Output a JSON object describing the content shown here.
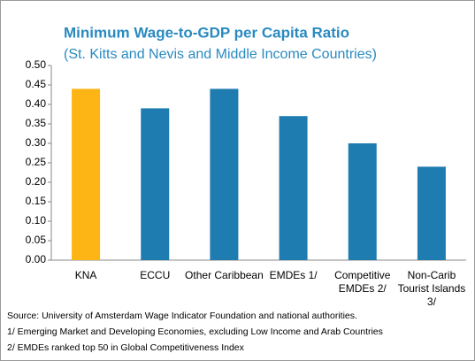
{
  "chart_data": {
    "type": "bar",
    "title": "Minimum Wage-to-GDP per Capita Ratio",
    "subtitle": "(St. Kitts and Nevis and Middle Income Countries)",
    "categories": [
      "KNA",
      "ECCU",
      "Other Caribbean",
      "EMDEs 1/",
      "Competitive EMDEs 2/",
      "Non-Carib Tourist Islands 3/"
    ],
    "values": [
      0.44,
      0.39,
      0.44,
      0.37,
      0.3,
      0.24
    ],
    "colors": [
      "#fdb515",
      "#1f7cb0",
      "#1f7cb0",
      "#1f7cb0",
      "#1f7cb0",
      "#1f7cb0"
    ],
    "ylim": [
      0,
      0.5
    ],
    "yticks": [
      {
        "value": 0,
        "label": "0.00"
      },
      {
        "value": 0.05,
        "label": "0.05"
      },
      {
        "value": 0.1,
        "label": "0.10"
      },
      {
        "value": 0.15,
        "label": "0.15"
      },
      {
        "value": 0.2,
        "label": "0.20"
      },
      {
        "value": 0.25,
        "label": "0.25"
      },
      {
        "value": 0.3,
        "label": "0.30"
      },
      {
        "value": 0.35,
        "label": "0.35"
      },
      {
        "value": 0.4,
        "label": "0.40"
      },
      {
        "value": 0.45,
        "label": "0.45"
      },
      {
        "value": 0.5,
        "label": "0.50"
      }
    ],
    "grid": false,
    "notes": [
      "Source: University of Amsterdam Wage Indicator Foundation and national authorities.",
      "1/ Emerging Market and Developing Economies, excluding Low Income and Arab Countries",
      "2/ EMDEs ranked top 50 in Global Competitiveness Index"
    ]
  }
}
